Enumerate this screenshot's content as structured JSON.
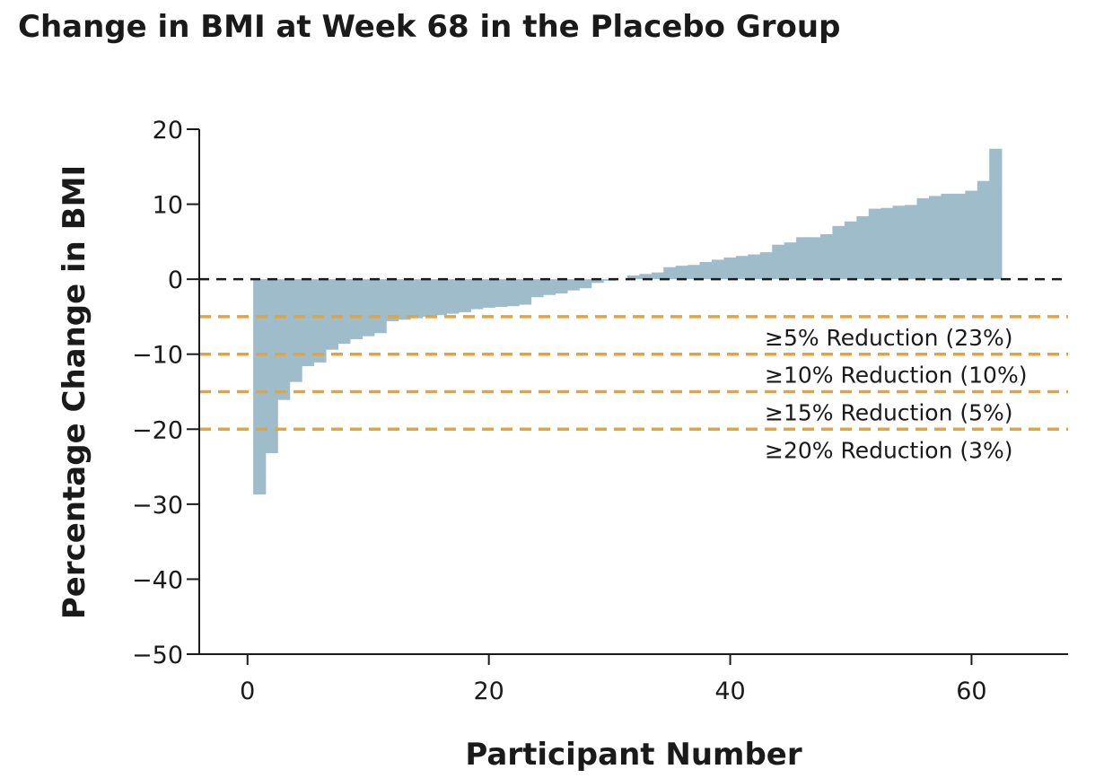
{
  "title": "Change in BMI at Week 68 in the Placebo Group",
  "chart_data": {
    "type": "bar",
    "title": "Change in BMI at Week 68 in the Placebo Group",
    "xlabel": "Participant Number",
    "ylabel": "Percentage Change in BMI",
    "xlim": [
      -4,
      68
    ],
    "ylim": [
      -50,
      20
    ],
    "xticks": [
      0,
      20,
      40,
      60
    ],
    "yticks": [
      20,
      10,
      0,
      -10,
      -20,
      -30,
      -40,
      -50
    ],
    "x": [
      1,
      2,
      3,
      4,
      5,
      6,
      7,
      8,
      9,
      10,
      11,
      12,
      13,
      14,
      15,
      16,
      17,
      18,
      19,
      20,
      21,
      22,
      23,
      24,
      25,
      26,
      27,
      28,
      29,
      30,
      31,
      32,
      33,
      34,
      35,
      36,
      37,
      38,
      39,
      40,
      41,
      42,
      43,
      44,
      45,
      46,
      47,
      48,
      49,
      50,
      51,
      52,
      53,
      54,
      55,
      56,
      57,
      58,
      59,
      60,
      61,
      62
    ],
    "values": [
      -28.7,
      -23.2,
      -16.1,
      -13.7,
      -11.6,
      -11.1,
      -9.4,
      -8.6,
      -8.0,
      -7.6,
      -7.2,
      -5.6,
      -5.4,
      -5.2,
      -5.0,
      -4.8,
      -4.6,
      -4.4,
      -4.0,
      -3.8,
      -3.7,
      -3.6,
      -3.4,
      -2.4,
      -2.1,
      -1.9,
      -1.5,
      -1.2,
      -0.5,
      -0.2,
      0.0,
      0.5,
      0.7,
      0.9,
      1.6,
      1.8,
      1.9,
      2.3,
      2.6,
      2.9,
      3.1,
      3.3,
      3.6,
      4.6,
      4.9,
      5.6,
      5.6,
      6.0,
      7.1,
      7.7,
      8.4,
      9.4,
      9.5,
      9.8,
      9.9,
      10.8,
      11.1,
      11.4,
      11.4,
      11.8,
      13.1,
      17.4
    ],
    "bar_color": "#9fbccb",
    "zero_line_color": "#1a1a1a",
    "threshold_color": "#e3a43f",
    "thresholds": [
      {
        "y": -5,
        "label": "≥5% Reduction (23%)"
      },
      {
        "y": -10,
        "label": "≥10% Reduction (10%)"
      },
      {
        "y": -15,
        "label": "≥15% Reduction (5%)"
      },
      {
        "y": -20,
        "label": "≥20% Reduction (3%)"
      }
    ],
    "grid": false
  }
}
